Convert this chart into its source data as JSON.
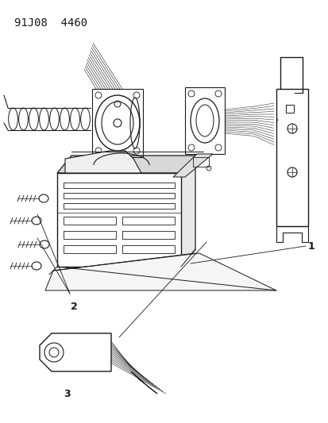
{
  "title_code": "91J08  4460",
  "title_fontsize": 10,
  "bg_color": "#ffffff",
  "line_color": "#1a1a1a",
  "label_1": "1",
  "label_2": "2",
  "label_3": "3",
  "fig_width": 4.14,
  "fig_height": 5.33,
  "dpi": 100
}
